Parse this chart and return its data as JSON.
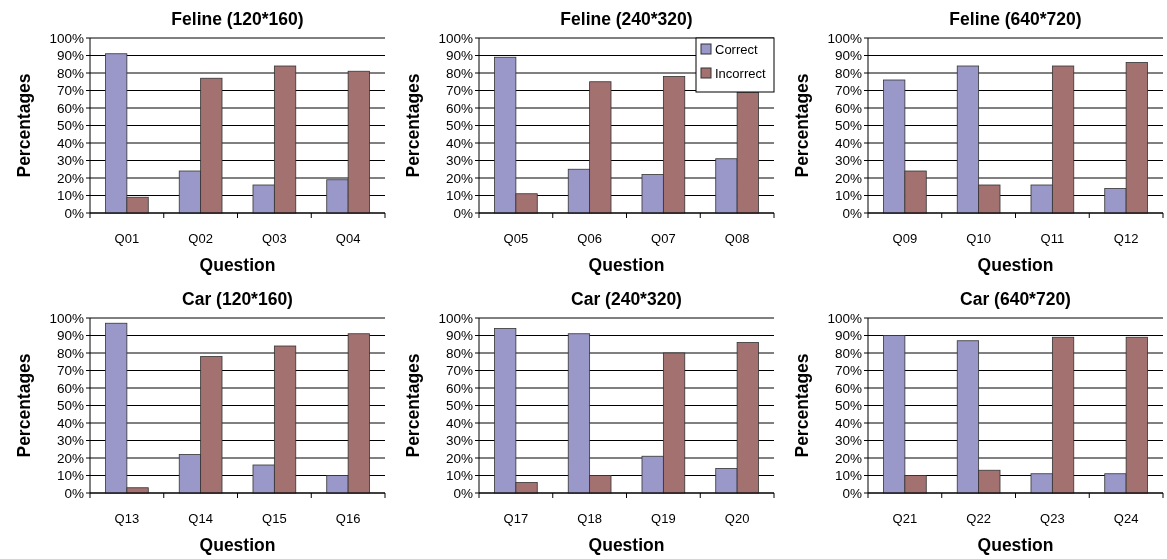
{
  "chart_data": [
    {
      "type": "bar",
      "title": "Feline (120*160)",
      "xlabel": "Question",
      "ylabel": "Percentages",
      "categories": [
        "Q01",
        "Q02",
        "Q03",
        "Q04"
      ],
      "series": [
        {
          "color": "#9a98c9",
          "values": [
            91,
            24,
            16,
            19
          ]
        },
        {
          "color": "#a47171",
          "values": [
            9,
            77,
            84,
            81
          ]
        }
      ],
      "ylim": [
        0,
        100
      ],
      "yticks": [
        {
          "value": 0,
          "label": "0%"
        },
        {
          "value": 10,
          "label": "10%"
        },
        {
          "value": 20,
          "label": "20%"
        },
        {
          "value": 30,
          "label": "30%"
        },
        {
          "value": 40,
          "label": "40%"
        },
        {
          "value": 50,
          "label": "50%"
        },
        {
          "value": 60,
          "label": "60%"
        },
        {
          "value": 70,
          "label": "70%"
        },
        {
          "value": 80,
          "label": "80%"
        },
        {
          "value": 90,
          "label": "90%"
        },
        {
          "value": 100,
          "label": "100%"
        }
      ],
      "grid": "y"
    },
    {
      "type": "bar",
      "title": "Feline (240*320)",
      "xlabel": "Question",
      "ylabel": "Percentages",
      "categories": [
        "Q05",
        "Q06",
        "Q07",
        "Q08"
      ],
      "series": [
        {
          "name": "Correct",
          "color": "#9a98c9",
          "values": [
            89,
            25,
            22,
            31
          ]
        },
        {
          "name": "Incorrect",
          "color": "#a47171",
          "values": [
            11,
            75,
            78,
            69
          ]
        }
      ],
      "ylim": [
        0,
        100
      ],
      "yticks": [
        {
          "value": 0,
          "label": "0%"
        },
        {
          "value": 10,
          "label": "10%"
        },
        {
          "value": 20,
          "label": "20%"
        },
        {
          "value": 30,
          "label": "30%"
        },
        {
          "value": 40,
          "label": "40%"
        },
        {
          "value": 50,
          "label": "50%"
        },
        {
          "value": 60,
          "label": "60%"
        },
        {
          "value": 70,
          "label": "70%"
        },
        {
          "value": 80,
          "label": "80%"
        },
        {
          "value": 90,
          "label": "90%"
        },
        {
          "value": 100,
          "label": "100%"
        }
      ],
      "grid": "y",
      "legend": "top right"
    },
    {
      "type": "bar",
      "title": "Feline (640*720)",
      "xlabel": "Question",
      "ylabel": "Percentages",
      "categories": [
        "Q09",
        "Q10",
        "Q11",
        "Q12"
      ],
      "series": [
        {
          "color": "#9a98c9",
          "values": [
            76,
            84,
            16,
            14
          ]
        },
        {
          "color": "#a47171",
          "values": [
            24,
            16,
            84,
            86
          ]
        }
      ],
      "ylim": [
        0,
        100
      ],
      "yticks": [
        {
          "value": 0,
          "label": "0%"
        },
        {
          "value": 10,
          "label": "10%"
        },
        {
          "value": 20,
          "label": "20%"
        },
        {
          "value": 30,
          "label": "30%"
        },
        {
          "value": 40,
          "label": "40%"
        },
        {
          "value": 50,
          "label": "50%"
        },
        {
          "value": 60,
          "label": "60%"
        },
        {
          "value": 70,
          "label": "70%"
        },
        {
          "value": 80,
          "label": "80%"
        },
        {
          "value": 90,
          "label": "90%"
        },
        {
          "value": 100,
          "label": "100%"
        }
      ],
      "grid": "y"
    },
    {
      "type": "bar",
      "title": "Car (120*160)",
      "xlabel": "Question",
      "ylabel": "Percentages",
      "categories": [
        "Q13",
        "Q14",
        "Q15",
        "Q16"
      ],
      "series": [
        {
          "color": "#9a98c9",
          "values": [
            97,
            22,
            16,
            10
          ]
        },
        {
          "color": "#a47171",
          "values": [
            3,
            78,
            84,
            91
          ]
        }
      ],
      "ylim": [
        0,
        100
      ],
      "yticks": [
        {
          "value": 0,
          "label": "0%"
        },
        {
          "value": 10,
          "label": "10%"
        },
        {
          "value": 20,
          "label": "20%"
        },
        {
          "value": 30,
          "label": "30%"
        },
        {
          "value": 40,
          "label": "40%"
        },
        {
          "value": 50,
          "label": "50%"
        },
        {
          "value": 60,
          "label": "60%"
        },
        {
          "value": 70,
          "label": "70%"
        },
        {
          "value": 80,
          "label": "80%"
        },
        {
          "value": 90,
          "label": "90%"
        },
        {
          "value": 100,
          "label": "100%"
        }
      ],
      "grid": "y"
    },
    {
      "type": "bar",
      "title": "Car (240*320)",
      "xlabel": "Question",
      "ylabel": "Percentages",
      "categories": [
        "Q17",
        "Q18",
        "Q19",
        "Q20"
      ],
      "series": [
        {
          "color": "#9a98c9",
          "values": [
            94,
            91,
            21,
            14
          ]
        },
        {
          "color": "#a47171",
          "values": [
            6,
            10,
            80,
            86
          ]
        }
      ],
      "ylim": [
        0,
        100
      ],
      "yticks": [
        {
          "value": 0,
          "label": "0%"
        },
        {
          "value": 10,
          "label": "10%"
        },
        {
          "value": 20,
          "label": "20%"
        },
        {
          "value": 30,
          "label": "30%"
        },
        {
          "value": 40,
          "label": "40%"
        },
        {
          "value": 50,
          "label": "50%"
        },
        {
          "value": 60,
          "label": "60%"
        },
        {
          "value": 70,
          "label": "70%"
        },
        {
          "value": 80,
          "label": "80%"
        },
        {
          "value": 90,
          "label": "90%"
        },
        {
          "value": 100,
          "label": "100%"
        }
      ],
      "grid": "y"
    },
    {
      "type": "bar",
      "title": "Car (640*720)",
      "xlabel": "Question",
      "ylabel": "Percentages",
      "categories": [
        "Q21",
        "Q22",
        "Q23",
        "Q24"
      ],
      "series": [
        {
          "color": "#9a98c9",
          "values": [
            90,
            87,
            11,
            11
          ]
        },
        {
          "color": "#a47171",
          "values": [
            10,
            13,
            89,
            89
          ]
        }
      ],
      "ylim": [
        0,
        100
      ],
      "yticks": [
        {
          "value": 0,
          "label": "0%"
        },
        {
          "value": 10,
          "label": "10%"
        },
        {
          "value": 20,
          "label": "20%"
        },
        {
          "value": 30,
          "label": "30%"
        },
        {
          "value": 40,
          "label": "40%"
        },
        {
          "value": 50,
          "label": "50%"
        },
        {
          "value": 60,
          "label": "60%"
        },
        {
          "value": 70,
          "label": "70%"
        },
        {
          "value": 80,
          "label": "80%"
        },
        {
          "value": 90,
          "label": "90%"
        },
        {
          "value": 100,
          "label": "100%"
        }
      ],
      "grid": "y"
    }
  ]
}
